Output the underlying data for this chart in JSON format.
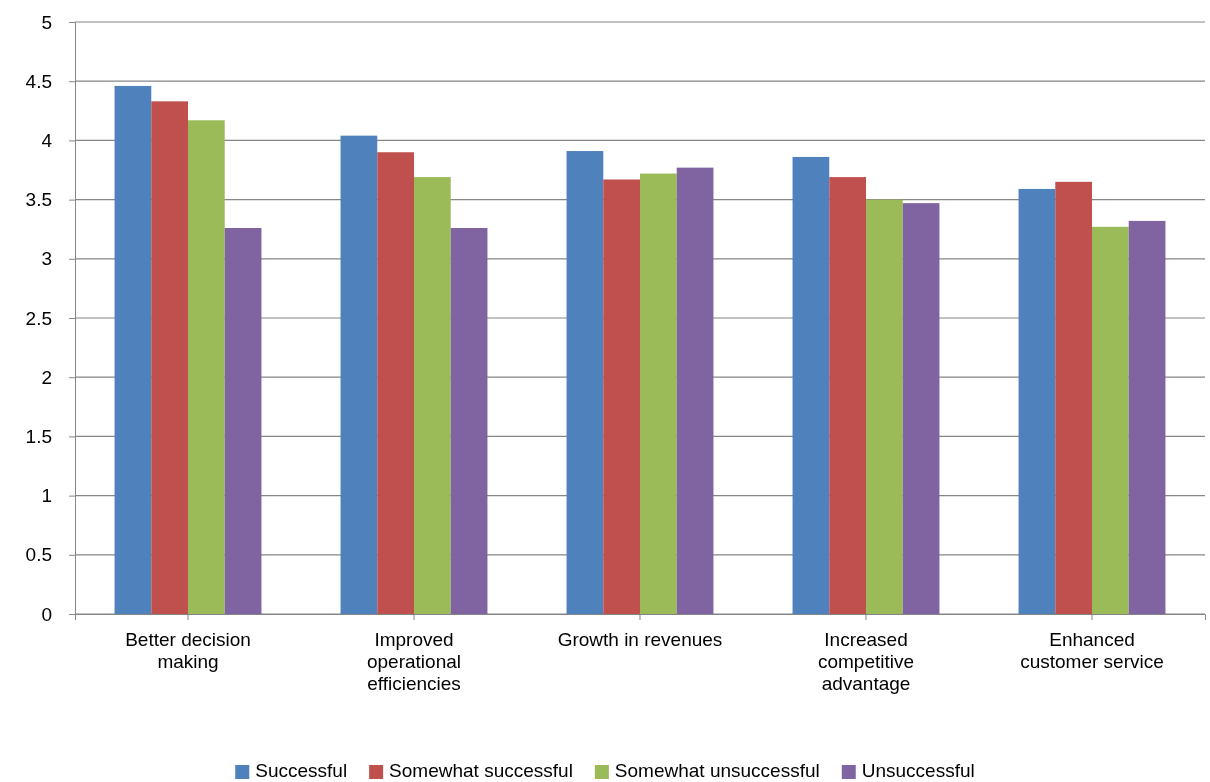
{
  "chart_data": {
    "type": "bar",
    "categories": [
      "Better decision making",
      "Improved operational efficiencies",
      "Growth in revenues",
      "Increased competitive advantage",
      "Enhanced customer service"
    ],
    "series": [
      {
        "name": "Successful",
        "color": "#4f81bd",
        "values": [
          4.46,
          4.04,
          3.91,
          3.86,
          3.59
        ]
      },
      {
        "name": "Somewhat successful",
        "color": "#c0504d",
        "values": [
          4.33,
          3.9,
          3.67,
          3.69,
          3.65
        ]
      },
      {
        "name": "Somewhat unsuccessful",
        "color": "#9bbb59",
        "values": [
          4.17,
          3.69,
          3.72,
          3.5,
          3.27
        ]
      },
      {
        "name": "Unsuccessful",
        "color": "#8064a2",
        "values": [
          3.26,
          3.26,
          3.77,
          3.47,
          3.32
        ]
      }
    ],
    "ylim": [
      0,
      5
    ],
    "yticks": [
      0,
      0.5,
      1,
      1.5,
      2,
      2.5,
      3,
      3.5,
      4,
      4.5,
      5
    ],
    "grid": "y",
    "legend": "bottom"
  }
}
